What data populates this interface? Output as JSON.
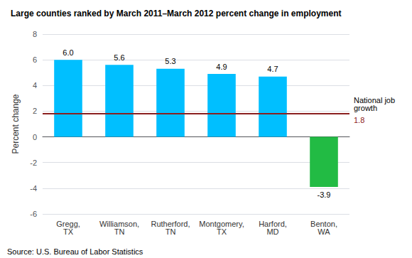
{
  "chart_data": {
    "type": "bar",
    "title": "Large counties ranked by March 2011–March 2012 percent change in employment",
    "categories": [
      "Gregg,\nTX",
      "Williamson,\nTN",
      "Rutherford,\nTN",
      "Montgomery,\nTX",
      "Harford,\nMD",
      "Benton,\nWA"
    ],
    "values": [
      6.0,
      5.6,
      5.3,
      4.9,
      4.7,
      -3.9
    ],
    "value_labels": [
      "6.0",
      "5.6",
      "5.3",
      "4.9",
      "4.7",
      "-3.9"
    ],
    "data_labels": true,
    "colors": [
      "#00BFFF",
      "#00BFFF",
      "#00BFFF",
      "#00BFFF",
      "#00BFFF",
      "#22BB44"
    ],
    "ylabel": "Percent change",
    "ylim": [
      -6,
      8
    ],
    "yticks": [
      -6,
      -4,
      -2,
      0,
      2,
      4,
      6,
      8
    ],
    "grid": true,
    "reference_line": {
      "value": 1.8,
      "label": "National job\ngrowth",
      "color": "#8B2020"
    },
    "source": "Source: U.S. Bureau of Labor Statistics"
  }
}
